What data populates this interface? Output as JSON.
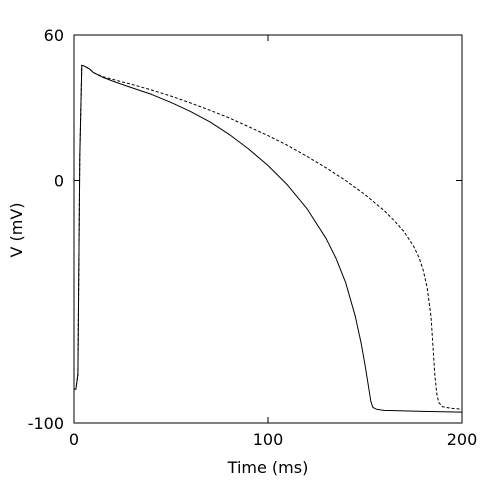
{
  "chart_data": {
    "type": "line",
    "title": "",
    "xlabel": "Time (ms)",
    "ylabel": "V (mV)",
    "xlim": [
      0,
      200
    ],
    "ylim": [
      -100,
      60
    ],
    "xticks": [
      0,
      100,
      200
    ],
    "yticks": [
      -100,
      0,
      60
    ],
    "x_tick_labels": [
      "0",
      "100",
      "200"
    ],
    "y_tick_labels": [
      "-100",
      "0",
      "60"
    ],
    "grid": false,
    "series": [
      {
        "style": "solid",
        "color": "#000000",
        "x": [
          0,
          1,
          2,
          3,
          4,
          5,
          8,
          10,
          15,
          20,
          30,
          40,
          50,
          60,
          70,
          80,
          90,
          100,
          110,
          120,
          130,
          135,
          140,
          145,
          148,
          150,
          152,
          153,
          154,
          155,
          156,
          158,
          160,
          170,
          180,
          190,
          200
        ],
        "y": [
          -86,
          -86,
          -80,
          10,
          47.5,
          47.3,
          46,
          44.5,
          42.5,
          41,
          38.2,
          35.5,
          32.2,
          28.5,
          24.2,
          19,
          13,
          6.2,
          -1.8,
          -11.5,
          -24,
          -32,
          -42,
          -56,
          -67,
          -76,
          -86,
          -91,
          -93.5,
          -94,
          -94.3,
          -94.6,
          -94.8,
          -95,
          -95.2,
          -95.4,
          -95.5
        ]
      },
      {
        "style": "dashed",
        "color": "#000000",
        "x": [
          0,
          1,
          2,
          3,
          4,
          5,
          8,
          10,
          15,
          20,
          30,
          40,
          50,
          60,
          70,
          80,
          90,
          100,
          110,
          120,
          130,
          140,
          150,
          160,
          165,
          170,
          175,
          178,
          180,
          182,
          184,
          185,
          186,
          187,
          188,
          190,
          195,
          200
        ],
        "y": [
          -86,
          -86,
          -80,
          10,
          47.5,
          47.3,
          46,
          44.5,
          42.8,
          41.7,
          39.6,
          37.3,
          34.8,
          32,
          29,
          25.8,
          22.2,
          18.5,
          14.5,
          10,
          5.2,
          0,
          -5.8,
          -12.5,
          -16.5,
          -21,
          -27,
          -32,
          -37,
          -44,
          -56,
          -68,
          -80,
          -88,
          -91.5,
          -93.3,
          -94,
          -94.3
        ]
      }
    ]
  }
}
